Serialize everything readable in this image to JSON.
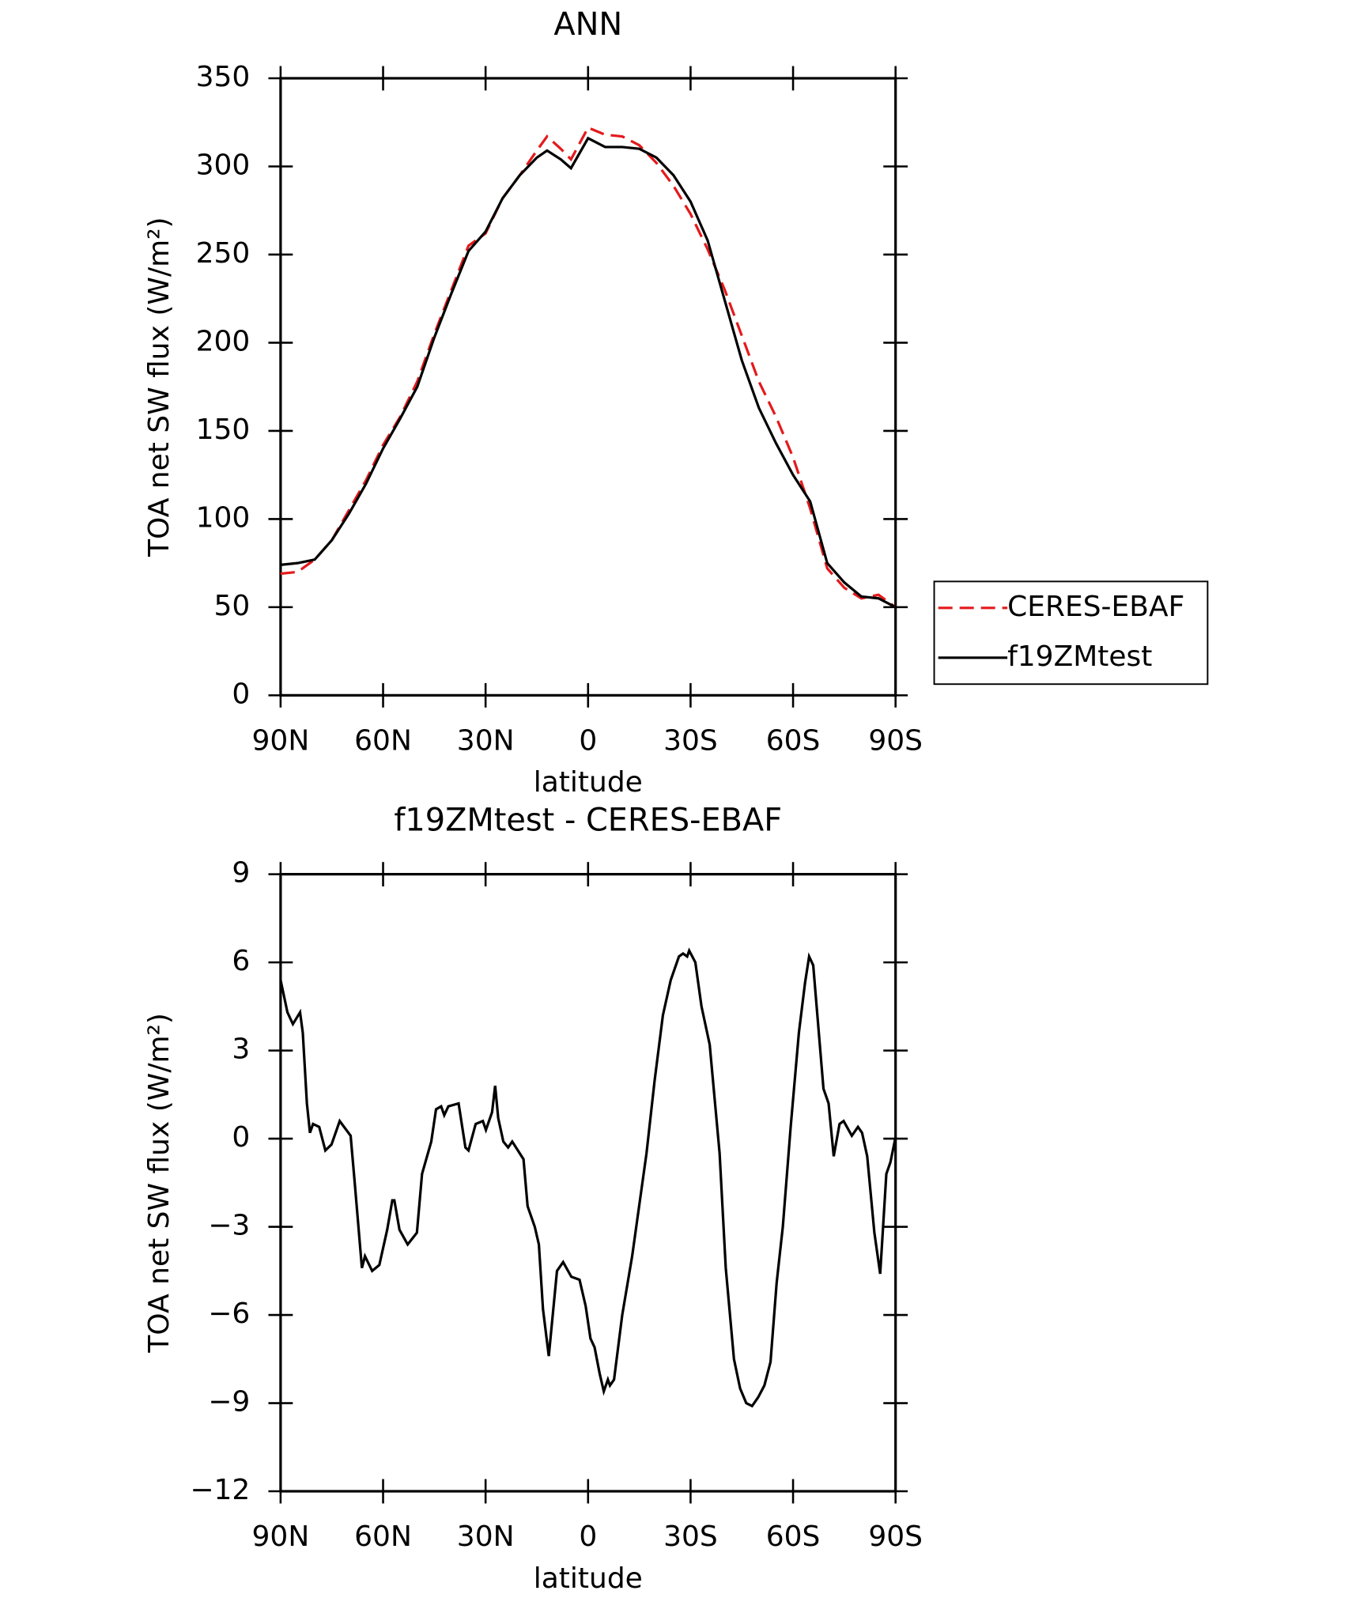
{
  "chart_data": [
    {
      "type": "line",
      "title": "ANN",
      "xlabel": "latitude",
      "ylabel": "TOA net SW flux (W/m²)",
      "x": [
        90,
        85,
        80,
        75,
        70,
        65,
        60,
        55,
        50,
        45,
        40,
        35,
        30,
        25,
        20,
        15,
        12,
        8,
        5,
        0,
        -5,
        -10,
        -15,
        -20,
        -25,
        -30,
        -35,
        -40,
        -45,
        -50,
        -55,
        -60,
        -65,
        -70,
        -75,
        -80,
        -85,
        -90
      ],
      "series": [
        {
          "name": "CERES-EBAF",
          "color": "#e41a1c",
          "dashed": true,
          "values": [
            69,
            70,
            77,
            88,
            105,
            122,
            142,
            158,
            178,
            205,
            230,
            255,
            262,
            282,
            295,
            309,
            317,
            310,
            304,
            322,
            318,
            317,
            312,
            302,
            289,
            273,
            253,
            230,
            204,
            178,
            158,
            135,
            106,
            72,
            61,
            55,
            57,
            50
          ]
        },
        {
          "name": "f19ZMtest",
          "color": "#000000",
          "dashed": false,
          "values": [
            74,
            75,
            77,
            88,
            103,
            120,
            140,
            157,
            175,
            203,
            228,
            252,
            263,
            282,
            295,
            305,
            309,
            304,
            299,
            316,
            311,
            311,
            310,
            305,
            295,
            280,
            258,
            224,
            190,
            163,
            143,
            125,
            110,
            75,
            64,
            56,
            55,
            50
          ]
        }
      ],
      "xlim": [
        90,
        -90
      ],
      "xticks": [
        {
          "value": 90,
          "label": "90N"
        },
        {
          "value": 60,
          "label": "60N"
        },
        {
          "value": 30,
          "label": "30N"
        },
        0,
        {
          "value": -30,
          "label": "30S"
        },
        {
          "value": -60,
          "label": "60S"
        },
        {
          "value": -90,
          "label": "90S"
        }
      ],
      "ylim": [
        0,
        350
      ],
      "yticks": [
        0,
        50,
        100,
        150,
        200,
        250,
        300,
        350
      ],
      "legend": "right"
    },
    {
      "type": "line",
      "title": "f19ZMtest - CERES-EBAF",
      "xlabel": "latitude",
      "ylabel": "TOA net SW flux (W/m²)",
      "x": [
        90,
        88,
        86.4,
        84.3,
        83.5,
        82.3,
        81.4,
        80.5,
        78.7,
        76.9,
        75.1,
        72.7,
        69.5,
        68.3,
        66.2,
        65.3,
        63.2,
        61.1,
        58.8,
        57.3,
        56.7,
        55.2,
        52.8,
        50.1,
        48.6,
        45.9,
        44.5,
        43,
        42.1,
        40.9,
        37.9,
        35.9,
        35,
        32.9,
        30.8,
        29.9,
        28.1,
        27.2,
        26.3,
        24.8,
        23.4,
        22.2,
        18.9,
        17.7,
        15.6,
        14.4,
        13.2,
        11.5,
        9.1,
        7.3,
        4.9,
        2.5,
        0.7,
        -0.7,
        -1.9,
        -3.4,
        -4.6,
        -5.8,
        -6.4,
        -7.6,
        -10,
        -12.9,
        -14.1,
        -17.1,
        -19.5,
        -21.9,
        -24.2,
        -26.6,
        -27.8,
        -29,
        -29.6,
        -31.4,
        -33.2,
        -35.6,
        -38.5,
        -40.3,
        -42.7,
        -44.5,
        -46.3,
        -48,
        -49.8,
        -51.6,
        -53.4,
        -55.2,
        -57,
        -59.3,
        -61.7,
        -63.5,
        -64.7,
        -65.9,
        -68.9,
        -70.4,
        -71.9,
        -73.6,
        -74.8,
        -77.2,
        -79,
        -80.2,
        -81.7,
        -83.8,
        -85.5,
        -87.3,
        -88.5,
        -90
      ],
      "values": [
        5.4,
        4.3,
        3.9,
        4.3,
        3.6,
        1.2,
        0.2,
        0.5,
        0.4,
        -0.4,
        -0.2,
        0.6,
        0.1,
        -1.5,
        -4.4,
        -4.0,
        -4.5,
        -4.3,
        -3.1,
        -2.1,
        -2.1,
        -3.1,
        -3.6,
        -3.2,
        -1.2,
        -0.1,
        1.0,
        1.1,
        0.8,
        1.1,
        1.2,
        -0.3,
        -0.4,
        0.5,
        0.6,
        0.3,
        0.9,
        1.8,
        0.7,
        -0.1,
        -0.3,
        -0.1,
        -0.7,
        -2.3,
        -3.0,
        -3.6,
        -5.8,
        -7.4,
        -4.5,
        -4.2,
        -4.7,
        -4.8,
        -5.7,
        -6.8,
        -7.1,
        -8.0,
        -8.6,
        -8.2,
        -8.4,
        -8.2,
        -6.0,
        -4.0,
        -3.0,
        -0.5,
        2.0,
        4.2,
        5.4,
        6.2,
        6.3,
        6.2,
        6.4,
        6.0,
        4.5,
        3.2,
        -0.5,
        -4.4,
        -7.5,
        -8.5,
        -9.0,
        -9.1,
        -8.8,
        -8.4,
        -7.6,
        -4.9,
        -3.0,
        0.4,
        3.6,
        5.3,
        6.2,
        5.9,
        1.7,
        1.2,
        -0.6,
        0.5,
        0.6,
        0.1,
        0.4,
        0.2,
        -0.6,
        -3.2,
        -4.6,
        -1.2,
        -0.8,
        0.05
      ],
      "color": "#000000",
      "xlim": [
        90,
        -90
      ],
      "xticks": [
        {
          "value": 90,
          "label": "90N"
        },
        {
          "value": 60,
          "label": "60N"
        },
        {
          "value": 30,
          "label": "30N"
        },
        0,
        {
          "value": -30,
          "label": "30S"
        },
        {
          "value": -60,
          "label": "60S"
        },
        {
          "value": -90,
          "label": "90S"
        }
      ],
      "ylim": [
        -12,
        9
      ],
      "yticks": [
        {
          "value": -12,
          "label": "−12"
        },
        {
          "value": -9,
          "label": "−9"
        },
        {
          "value": -6,
          "label": "−6"
        },
        {
          "value": -3,
          "label": "−3"
        },
        0,
        3,
        6,
        9
      ]
    }
  ]
}
